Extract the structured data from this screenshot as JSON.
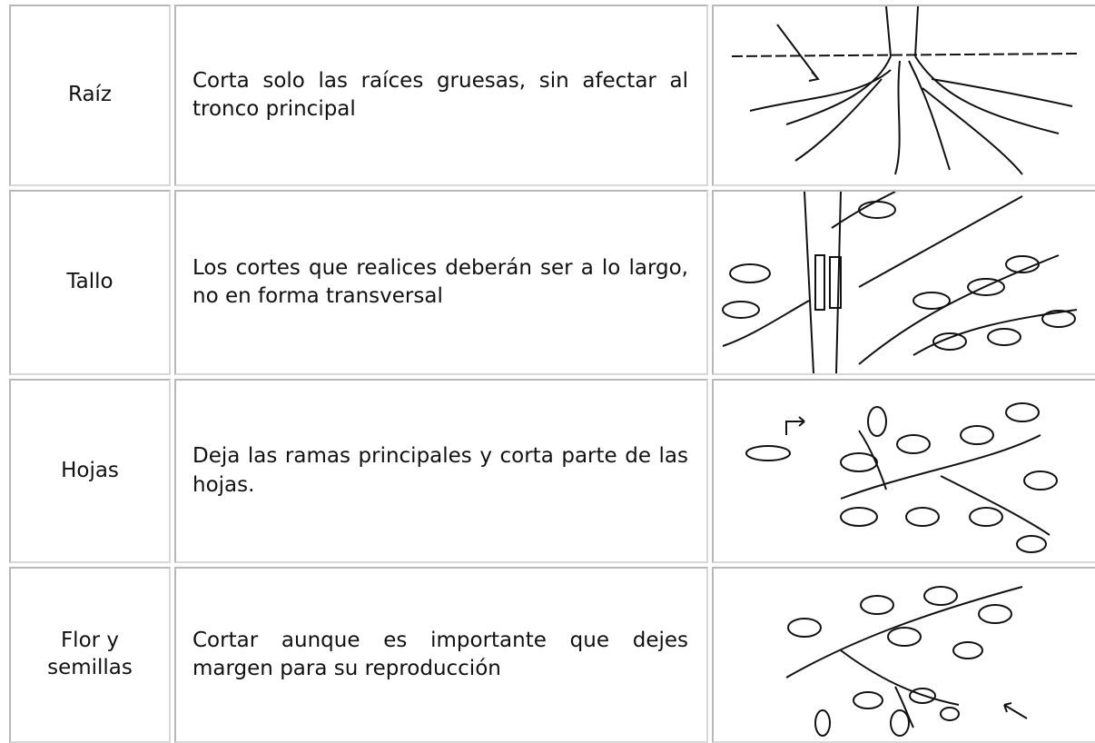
{
  "table": {
    "rows": [
      [
        "Raíz",
        "Corta solo las raíces gruesas,  sin afectar al tronco principal"
      ],
      [
        "Tallo",
        "Los cortes que realices deberán ser a lo largo, no en forma transversal"
      ],
      [
        "Hojas",
        "Deja las ramas principales y corta parte de las hojas."
      ],
      [
        "Flor y semillas",
        "Cortar aunque es importante que dejes margen para su reproducción"
      ]
    ]
  }
}
